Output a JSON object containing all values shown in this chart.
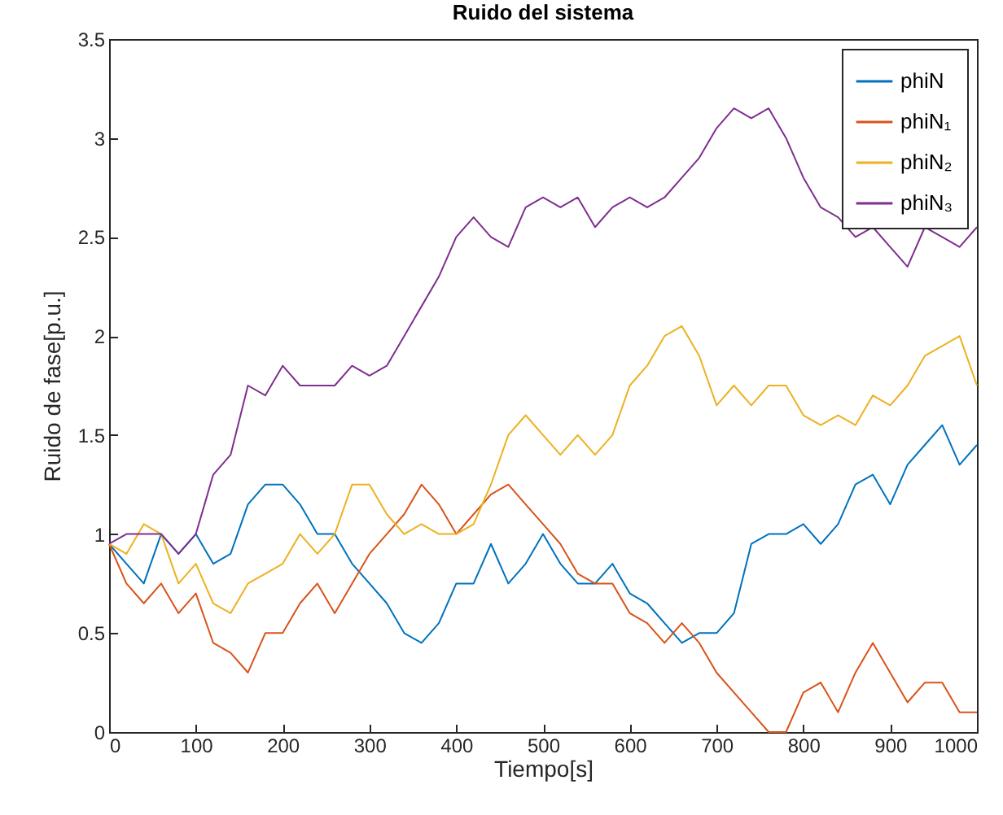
{
  "chart_data": {
    "type": "line",
    "title": "Ruido del sistema",
    "xlabel": "Tiempo[s]",
    "ylabel": "Ruido de fase[p.u.]",
    "x": [
      0,
      20,
      40,
      60,
      80,
      100,
      120,
      140,
      160,
      180,
      200,
      220,
      240,
      260,
      280,
      300,
      320,
      340,
      360,
      380,
      400,
      420,
      440,
      460,
      480,
      500,
      520,
      540,
      560,
      580,
      600,
      620,
      640,
      660,
      680,
      700,
      720,
      740,
      760,
      780,
      800,
      820,
      840,
      860,
      880,
      900,
      920,
      940,
      960,
      980,
      1000
    ],
    "series": [
      {
        "name": "phiN",
        "color": "#0072bd",
        "values": [
          0.95,
          0.85,
          0.75,
          1,
          0.9,
          1,
          0.85,
          0.9,
          1.15,
          1.25,
          1.25,
          1.15,
          1,
          1,
          0.85,
          0.75,
          0.65,
          0.5,
          0.45,
          0.55,
          0.75,
          0.75,
          0.95,
          0.75,
          0.85,
          1,
          0.85,
          0.75,
          0.75,
          0.85,
          0.7,
          0.65,
          0.55,
          0.45,
          0.5,
          0.5,
          0.6,
          0.95,
          1,
          1,
          1.05,
          0.95,
          1.05,
          1.25,
          1.3,
          1.15,
          1.35,
          1.45,
          1.55,
          1.35,
          1.45
        ]
      },
      {
        "name": "phiN₁",
        "color": "#d95319",
        "values": [
          0.95,
          0.75,
          0.65,
          0.75,
          0.6,
          0.7,
          0.45,
          0.4,
          0.3,
          0.5,
          0.5,
          0.65,
          0.75,
          0.6,
          0.75,
          0.9,
          1,
          1.1,
          1.25,
          1.15,
          1,
          1.1,
          1.2,
          1.25,
          1.15,
          1.05,
          0.95,
          0.8,
          0.75,
          0.75,
          0.6,
          0.55,
          0.45,
          0.55,
          0.45,
          0.3,
          0.2,
          0.1,
          0,
          0,
          0.2,
          0.25,
          0.1,
          0.3,
          0.45,
          0.3,
          0.15,
          0.25,
          0.25,
          0.1,
          0.1
        ]
      },
      {
        "name": "phiN₂",
        "color": "#edb120",
        "values": [
          0.95,
          0.9,
          1.05,
          1,
          0.75,
          0.85,
          0.65,
          0.6,
          0.75,
          0.8,
          0.85,
          1,
          0.9,
          1,
          1.25,
          1.25,
          1.1,
          1,
          1.05,
          1,
          1,
          1.05,
          1.25,
          1.5,
          1.6,
          1.5,
          1.4,
          1.5,
          1.4,
          1.5,
          1.75,
          1.85,
          2,
          2.05,
          1.9,
          1.65,
          1.75,
          1.65,
          1.75,
          1.75,
          1.6,
          1.55,
          1.6,
          1.55,
          1.7,
          1.65,
          1.75,
          1.9,
          1.95,
          2,
          1.75
        ]
      },
      {
        "name": "phiN₃",
        "color": "#7e2f8e",
        "values": [
          0.95,
          1,
          1,
          1,
          0.9,
          1,
          1.3,
          1.4,
          1.75,
          1.7,
          1.85,
          1.75,
          1.75,
          1.75,
          1.85,
          1.8,
          1.85,
          2,
          2.15,
          2.3,
          2.5,
          2.6,
          2.5,
          2.45,
          2.65,
          2.7,
          2.65,
          2.7,
          2.55,
          2.65,
          2.7,
          2.65,
          2.7,
          2.8,
          2.9,
          3.05,
          3.15,
          3.1,
          3.15,
          3,
          2.8,
          2.65,
          2.6,
          2.5,
          2.55,
          2.45,
          2.35,
          2.55,
          2.5,
          2.45,
          2.55
        ]
      }
    ],
    "xlim": [
      0,
      1000
    ],
    "xticks": [
      0,
      100,
      200,
      300,
      400,
      500,
      600,
      700,
      800,
      900,
      1000
    ],
    "ylim": [
      0,
      3.5
    ],
    "yticks": [
      0,
      0.5,
      1,
      1.5,
      2,
      2.5,
      3,
      3.5
    ],
    "legend": "top right",
    "grid": false
  }
}
